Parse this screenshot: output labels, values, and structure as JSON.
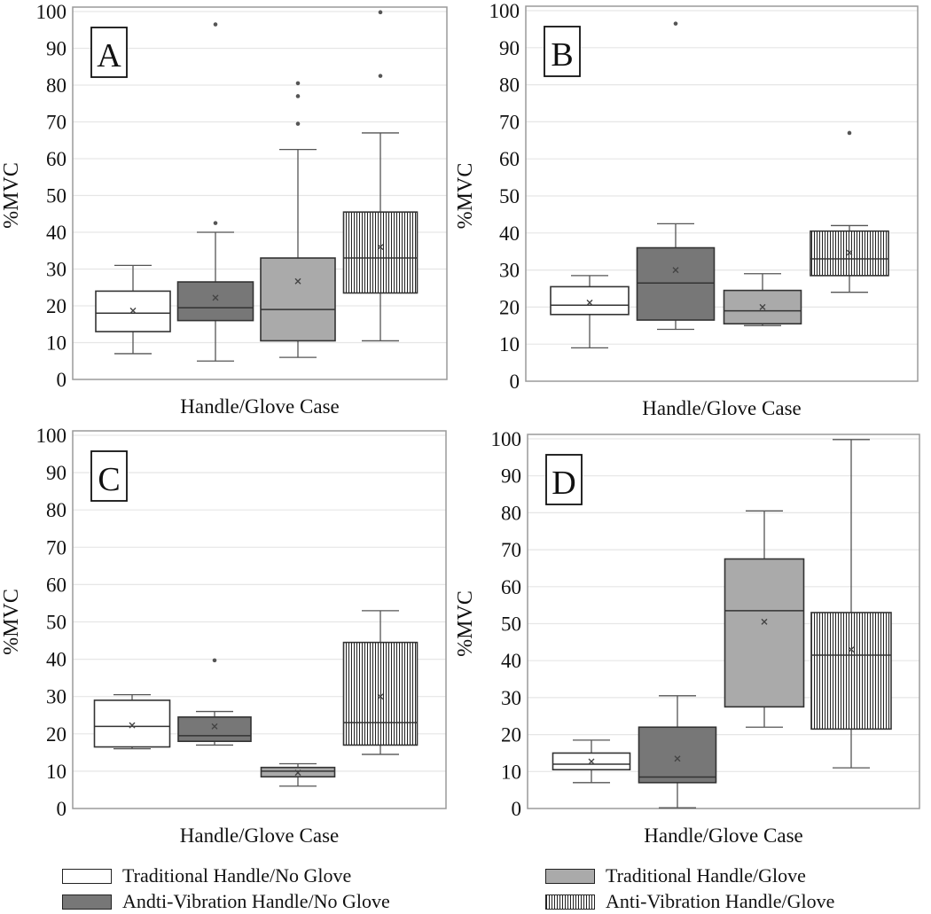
{
  "figure": {
    "legend": [
      {
        "label": "Traditional Handle/No Glove",
        "fill": "#ffffff",
        "pattern": "none"
      },
      {
        "label": "Andti-Vibration Handle/No Glove",
        "fill": "#777777",
        "pattern": "none"
      },
      {
        "label": "Traditional Handle/Glove",
        "fill": "#aaaaaa",
        "pattern": "none"
      },
      {
        "label": "Anti-Vibration Handle/Glove",
        "fill": "#ffffff",
        "pattern": "vertical-stripes"
      }
    ]
  },
  "chart_data": [
    {
      "type": "box",
      "panel_label": "A",
      "xlabel": "Handle/Glove Case",
      "ylabel": "%MVC",
      "ylim": [
        0,
        100
      ],
      "yticks": [
        0,
        10,
        20,
        30,
        40,
        50,
        60,
        70,
        80,
        90,
        100
      ],
      "grid": true,
      "series": [
        {
          "name": "Traditional Handle/No Glove",
          "min": 7,
          "q1": 13,
          "median": 18,
          "q3": 24,
          "max": 31,
          "mean": 18.7,
          "outliers": []
        },
        {
          "name": "Andti-Vibration Handle/No Glove",
          "min": 5,
          "q1": 16,
          "median": 19.5,
          "q3": 26.5,
          "max": 40,
          "mean": 22.2,
          "outliers": [
            42.5,
            96.5
          ]
        },
        {
          "name": "Traditional Handle/Glove",
          "min": 6,
          "q1": 10.5,
          "median": 19,
          "q3": 33,
          "max": 62.5,
          "mean": 26.7,
          "outliers": [
            69.5,
            77,
            80.5
          ]
        },
        {
          "name": "Anti-Vibration Handle/Glove",
          "min": 10.5,
          "q1": 23.5,
          "median": 33,
          "q3": 45.5,
          "max": 67,
          "mean": 36,
          "outliers": [
            82.5,
            99.8
          ]
        }
      ]
    },
    {
      "type": "box",
      "panel_label": "B",
      "xlabel": "Handle/Glove Case",
      "ylabel": "%MVC",
      "ylim": [
        0,
        100
      ],
      "yticks": [
        0,
        10,
        20,
        30,
        40,
        50,
        60,
        70,
        80,
        90,
        100
      ],
      "grid": true,
      "series": [
        {
          "name": "Traditional Handle/No Glove",
          "min": 9,
          "q1": 18,
          "median": 20.5,
          "q3": 25.5,
          "max": 28.5,
          "mean": 21.2,
          "outliers": []
        },
        {
          "name": "Andti-Vibration Handle/No Glove",
          "min": 14,
          "q1": 16.5,
          "median": 26.5,
          "q3": 36,
          "max": 42.5,
          "mean": 30,
          "outliers": [
            96.5
          ]
        },
        {
          "name": "Traditional Handle/Glove",
          "min": 15,
          "q1": 15.5,
          "median": 19,
          "q3": 24.5,
          "max": 29,
          "mean": 20,
          "outliers": []
        },
        {
          "name": "Anti-Vibration Handle/Glove",
          "min": 24,
          "q1": 28.5,
          "median": 33,
          "q3": 40.5,
          "max": 42,
          "mean": 34.7,
          "outliers": [
            67
          ]
        }
      ]
    },
    {
      "type": "box",
      "panel_label": "C",
      "xlabel": "Handle/Glove Case",
      "ylabel": "%MVC",
      "ylim": [
        0,
        100
      ],
      "yticks": [
        0,
        10,
        20,
        30,
        40,
        50,
        60,
        70,
        80,
        90,
        100
      ],
      "grid": true,
      "series": [
        {
          "name": "Traditional Handle/No Glove",
          "min": 16,
          "q1": 16.5,
          "median": 22,
          "q3": 29,
          "max": 30.5,
          "mean": 22.3,
          "outliers": []
        },
        {
          "name": "Andti-Vibration Handle/No Glove",
          "min": 17,
          "q1": 18,
          "median": 19.5,
          "q3": 24.5,
          "max": 26,
          "mean": 22,
          "outliers": [
            39.7
          ]
        },
        {
          "name": "Traditional Handle/Glove",
          "min": 6,
          "q1": 8.5,
          "median": 10,
          "q3": 11,
          "max": 12,
          "mean": 9.6,
          "outliers": []
        },
        {
          "name": "Anti-Vibration Handle/Glove",
          "min": 14.5,
          "q1": 17,
          "median": 23,
          "q3": 44.5,
          "max": 53,
          "mean": 30,
          "outliers": []
        }
      ]
    },
    {
      "type": "box",
      "panel_label": "D",
      "xlabel": "Handle/Glove Case",
      "ylabel": "%MVC",
      "ylim": [
        0,
        100
      ],
      "yticks": [
        0,
        10,
        20,
        30,
        40,
        50,
        60,
        70,
        80,
        90,
        100
      ],
      "grid": true,
      "series": [
        {
          "name": "Traditional Handle/No Glove",
          "min": 7,
          "q1": 10.5,
          "median": 12,
          "q3": 15,
          "max": 18.5,
          "mean": 12.7,
          "outliers": []
        },
        {
          "name": "Andti-Vibration Handle/No Glove",
          "min": 0.2,
          "q1": 7,
          "median": 8.5,
          "q3": 22,
          "max": 30.5,
          "mean": 13.5,
          "outliers": []
        },
        {
          "name": "Traditional Handle/Glove",
          "min": 22,
          "q1": 27.5,
          "median": 53.5,
          "q3": 67.5,
          "max": 80.5,
          "mean": 50.5,
          "outliers": []
        },
        {
          "name": "Anti-Vibration Handle/Glove",
          "min": 11,
          "q1": 21.5,
          "median": 41.5,
          "q3": 53,
          "max": 99.8,
          "mean": 43,
          "outliers": []
        }
      ]
    }
  ]
}
